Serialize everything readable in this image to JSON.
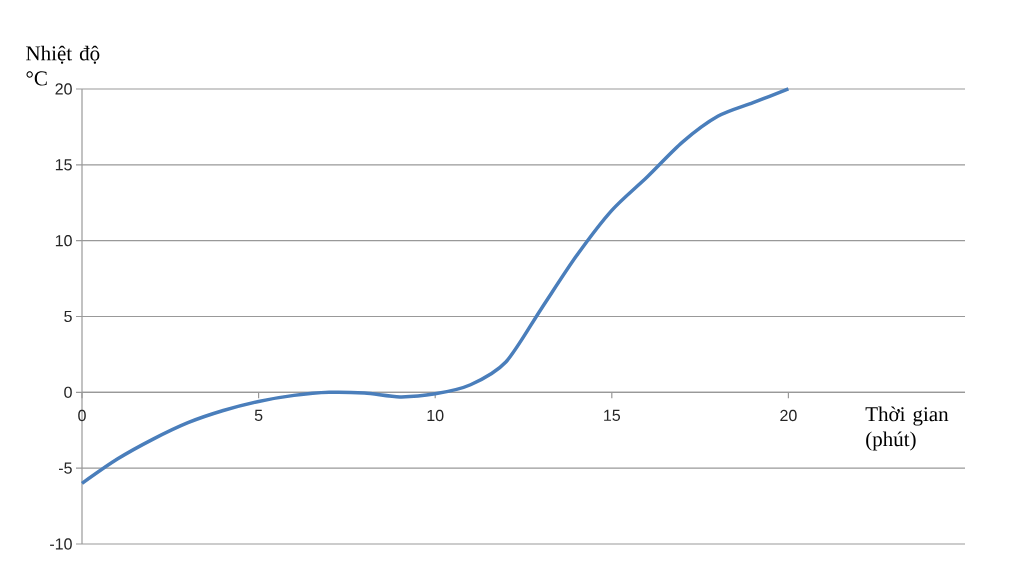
{
  "chart_data": {
    "type": "line",
    "xlabel": "Thời gian (phút)",
    "ylabel": "Nhiệt độ °C",
    "x": [
      0,
      1,
      2,
      3,
      4,
      5,
      6,
      7,
      8,
      9,
      10,
      11,
      12,
      13,
      14,
      15,
      16,
      17,
      18,
      19,
      20
    ],
    "series": [
      {
        "color": "#4a7ebb",
        "values": [
          -6,
          -4.4,
          -3.1,
          -2.0,
          -1.2,
          -0.6,
          -0.2,
          0,
          -0.05,
          -0.3,
          -0.1,
          0.5,
          2,
          5.5,
          9,
          12,
          14.2,
          16.5,
          18.2,
          19.1,
          20
        ]
      }
    ],
    "xlim": [
      0,
      25
    ],
    "xticks": [
      0,
      5,
      10,
      15,
      20
    ],
    "ylim": [
      -10,
      20
    ],
    "yticks": [
      -10,
      -5,
      0,
      5,
      10,
      15,
      20
    ],
    "grid": "y",
    "marker": "none",
    "line_style": "solid"
  }
}
